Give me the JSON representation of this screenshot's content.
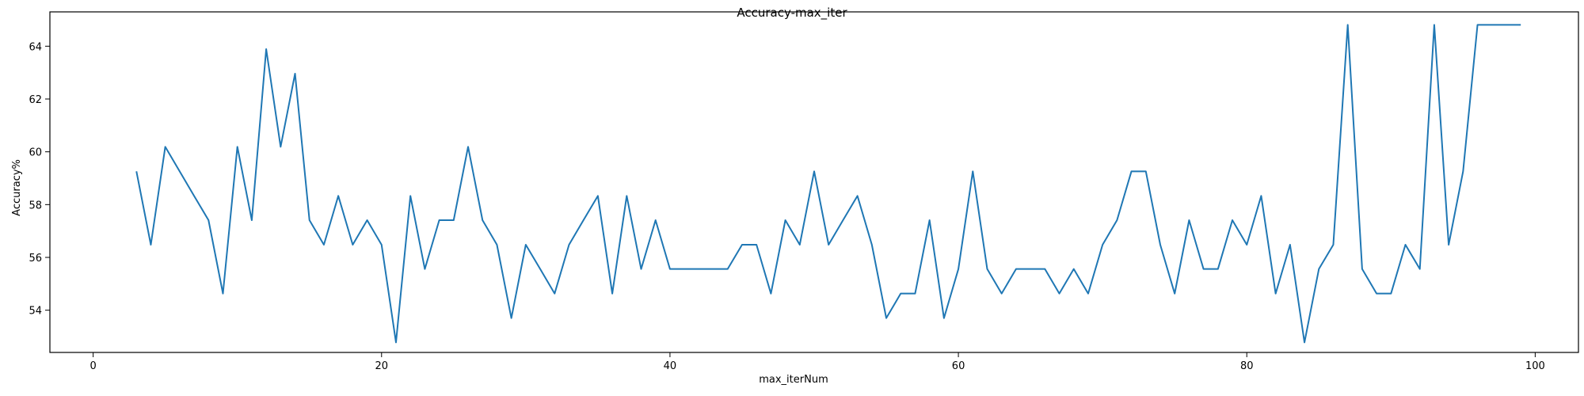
{
  "chart_data": {
    "type": "line",
    "title": "Accuracy-max_iter",
    "xlabel": "max_iterNum",
    "ylabel": "Accuracy%",
    "xlim": [
      -3,
      103
    ],
    "ylim": [
      52.4,
      65.3
    ],
    "xticks": [
      0,
      20,
      40,
      60,
      80,
      100
    ],
    "yticks": [
      54,
      56,
      58,
      60,
      62,
      64
    ],
    "grid": false,
    "colors": {
      "line": "#1f77b4",
      "axes": "#000000",
      "background": "#ffffff"
    },
    "series": [
      {
        "x": [
          3,
          4,
          5,
          6,
          7,
          8,
          9,
          10,
          11,
          12,
          13,
          14,
          15,
          16,
          17,
          18,
          19,
          20,
          21,
          22,
          23,
          24,
          25,
          26,
          27,
          28,
          29,
          30,
          31,
          32,
          33,
          34,
          35,
          36,
          37,
          38,
          39,
          40,
          41,
          42,
          43,
          44,
          45,
          46,
          47,
          48,
          49,
          50,
          51,
          52,
          53,
          54,
          55,
          56,
          57,
          58,
          59,
          60,
          61,
          62,
          63,
          64,
          65,
          66,
          67,
          68,
          69,
          70,
          71,
          72,
          73,
          74,
          75,
          76,
          77,
          78,
          79,
          80,
          81,
          82,
          83,
          84,
          85,
          86,
          87,
          88,
          89,
          90,
          91,
          92,
          93,
          94,
          95,
          96,
          97,
          98,
          99
        ],
        "values": [
          59.26,
          56.48,
          60.19,
          59.26,
          58.33,
          57.41,
          54.63,
          60.19,
          57.41,
          63.89,
          60.19,
          62.96,
          57.41,
          56.48,
          58.33,
          56.48,
          57.41,
          56.48,
          52.78,
          58.33,
          55.56,
          57.41,
          57.41,
          60.19,
          57.41,
          56.48,
          53.7,
          56.48,
          55.56,
          54.63,
          56.48,
          57.41,
          58.33,
          54.63,
          58.33,
          55.56,
          57.41,
          55.56,
          55.56,
          55.56,
          55.56,
          55.56,
          56.48,
          56.48,
          54.63,
          57.41,
          56.48,
          59.26,
          56.48,
          57.41,
          58.33,
          56.48,
          53.7,
          54.63,
          54.63,
          57.41,
          53.7,
          55.56,
          59.26,
          55.56,
          54.63,
          55.56,
          55.56,
          55.56,
          54.63,
          55.56,
          54.63,
          56.48,
          57.41,
          59.26,
          59.26,
          56.48,
          54.63,
          57.41,
          55.56,
          55.56,
          57.41,
          56.48,
          58.33,
          54.63,
          56.48,
          52.78,
          55.56,
          56.48,
          64.81,
          55.56,
          54.63,
          54.63,
          56.48,
          55.56,
          64.81,
          56.48,
          59.26,
          64.81,
          64.81,
          64.81,
          64.81
        ]
      }
    ]
  }
}
